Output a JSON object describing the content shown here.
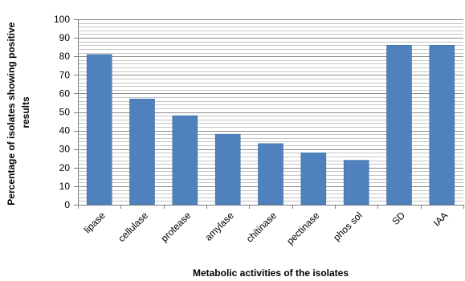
{
  "chart_data": {
    "type": "bar",
    "title": "",
    "xlabel": "Metabolic activities of the isolates",
    "ylabel_lines": [
      "Percentage of isolates showing positive",
      "results"
    ],
    "categories": [
      "lipase",
      "cellulase",
      "protease",
      "amylase",
      "chitinase",
      "pectinase",
      "phos sol",
      "SD",
      "IAA"
    ],
    "values": [
      81,
      57,
      48,
      38,
      33,
      28,
      24,
      86,
      86
    ],
    "ylim": [
      0,
      100
    ],
    "y_ticks": [
      "0",
      "10",
      "20",
      "30",
      "40",
      "50",
      "60",
      "70",
      "80",
      "90",
      "100"
    ],
    "grid": true,
    "legend": "none",
    "colors": {
      "bar": "#4F81BD",
      "bar_edge": "#3E6EA6",
      "grid": "#8C8C8C",
      "axis": "#7F7F7F"
    }
  }
}
